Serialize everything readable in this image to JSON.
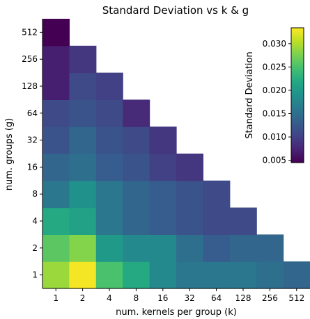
{
  "chart_data": {
    "type": "heatmap",
    "title": "Standard Deviation vs k & g",
    "xlabel": "num. kernels per group (k)",
    "ylabel": "num. groups (g)",
    "x_categories": [
      "1",
      "2",
      "4",
      "8",
      "16",
      "32",
      "64",
      "128",
      "256",
      "512"
    ],
    "y_categories": [
      "1",
      "2",
      "4",
      "8",
      "16",
      "32",
      "64",
      "128",
      "256",
      "512"
    ],
    "colorbar": {
      "label": "Standard Deviation",
      "range": [
        0.0045,
        0.0334
      ],
      "ticks": [
        0.005,
        0.01,
        0.015,
        0.02,
        0.025,
        0.03
      ],
      "tick_labels": [
        "0.005",
        "0.010",
        "0.015",
        "0.020",
        "0.025",
        "0.030"
      ],
      "colormap": "viridis",
      "placement": "top-right"
    },
    "values_by_g": [
      [
        0.029,
        0.033,
        0.025,
        0.022,
        0.018,
        0.016,
        0.016,
        0.016,
        0.015,
        0.014
      ],
      [
        0.026,
        0.028,
        0.02,
        0.018,
        0.018,
        0.015,
        0.013,
        0.014,
        0.014
      ],
      [
        0.022,
        0.021,
        0.016,
        0.014,
        0.013,
        0.012,
        0.011,
        0.011
      ],
      [
        0.016,
        0.019,
        0.016,
        0.014,
        0.013,
        0.012,
        0.011
      ],
      [
        0.014,
        0.015,
        0.013,
        0.012,
        0.01,
        0.009
      ],
      [
        0.012,
        0.014,
        0.012,
        0.011,
        0.009
      ],
      [
        0.011,
        0.012,
        0.011,
        0.008
      ],
      [
        0.007,
        0.011,
        0.01
      ],
      [
        0.007,
        0.009
      ],
      [
        0.004
      ]
    ]
  }
}
